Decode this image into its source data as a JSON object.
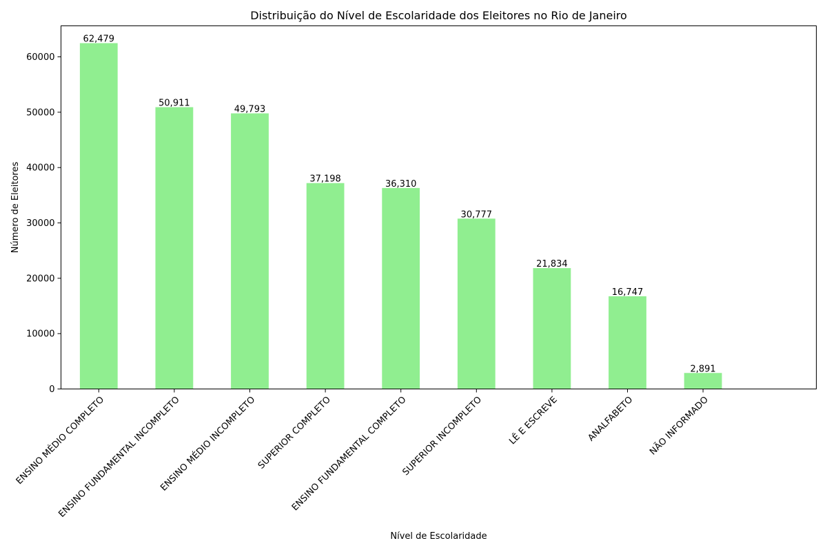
{
  "chart_data": {
    "type": "bar",
    "title": "Distribuição do Nível de Escolaridade dos Eleitores no Rio de Janeiro",
    "xlabel": "Nível de Escolaridade",
    "ylabel": "Número de Eleitores",
    "categories": [
      "ENSINO MÉDIO COMPLETO",
      "ENSINO FUNDAMENTAL INCOMPLETO",
      "ENSINO MÉDIO INCOMPLETO",
      "SUPERIOR COMPLETO",
      "ENSINO FUNDAMENTAL COMPLETO",
      "SUPERIOR INCOMPLETO",
      "LÊ E ESCREVE",
      "ANALFABETO",
      "NÃO INFORMADO"
    ],
    "values": [
      62479,
      50911,
      49793,
      37198,
      36310,
      30777,
      21834,
      16747,
      2891
    ],
    "data_labels": [
      "62,479",
      "50,911",
      "49,793",
      "37,198",
      "36,310",
      "30,777",
      "21,834",
      "16,747",
      "2,891"
    ],
    "ylim": [
      0,
      65603
    ],
    "yticks": [
      0,
      10000,
      20000,
      30000,
      40000,
      50000,
      60000
    ],
    "ytick_labels": [
      "0",
      "10000",
      "20000",
      "30000",
      "40000",
      "50000",
      "60000"
    ],
    "bar_color": "#90ee90",
    "grid": false,
    "legend": false
  }
}
